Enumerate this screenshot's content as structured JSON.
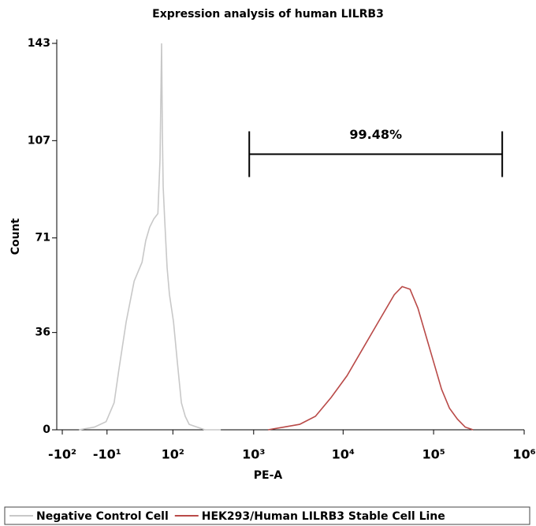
{
  "chart_data": {
    "type": "line",
    "title": "Expression analysis of human LILRB3",
    "x_label": "PE-A",
    "y_label": "Count",
    "xscale": "biexponential",
    "xlim": [
      -120,
      1000000
    ],
    "ylim": [
      0,
      143
    ],
    "xticks": [
      {
        "value": -100,
        "label": "-10²"
      },
      {
        "value": -10,
        "label": "-10¹"
      },
      {
        "value": 100,
        "label": "10²"
      },
      {
        "value": 1000,
        "label": "10³"
      },
      {
        "value": 10000,
        "label": "10⁴"
      },
      {
        "value": 100000,
        "label": "10⁵"
      },
      {
        "value": 1000000,
        "label": "10⁶"
      }
    ],
    "yticks": [
      0,
      36,
      71,
      107,
      143
    ],
    "gate": {
      "label": "99.48%",
      "x": [
        891,
        572600
      ],
      "y": 102
    },
    "series": [
      {
        "name": "Negative Control Cell",
        "color": "#c8c8c8",
        "x": [
          -54,
          -26,
          -11,
          -3,
          1,
          8,
          17,
          28,
          34,
          41,
          49,
          58,
          63,
          67,
          69,
          71,
          75,
          82,
          89,
          102,
          116,
          132,
          149,
          168,
          213,
          267,
          415
        ],
        "values": [
          0,
          1,
          3,
          10,
          22,
          40,
          55,
          62,
          70,
          75,
          78,
          80,
          100,
          143,
          110,
          90,
          78,
          60,
          50,
          40,
          25,
          10,
          5,
          2,
          1,
          0,
          0
        ]
      },
      {
        "name": "HEK293/Human LILRB3 Stable Cell Line",
        "color": "#b94a48",
        "x": [
          1456,
          2194,
          3293,
          4933,
          7378,
          11030,
          16480,
          24620,
          36760,
          44940,
          54900,
          67080,
          81960,
          100200,
          122400,
          149600,
          182700,
          223300,
          272800
        ],
        "values": [
          0,
          1,
          2,
          5,
          12,
          20,
          30,
          40,
          50,
          53,
          52,
          45,
          35,
          25,
          15,
          8,
          4,
          1,
          0
        ]
      }
    ]
  }
}
